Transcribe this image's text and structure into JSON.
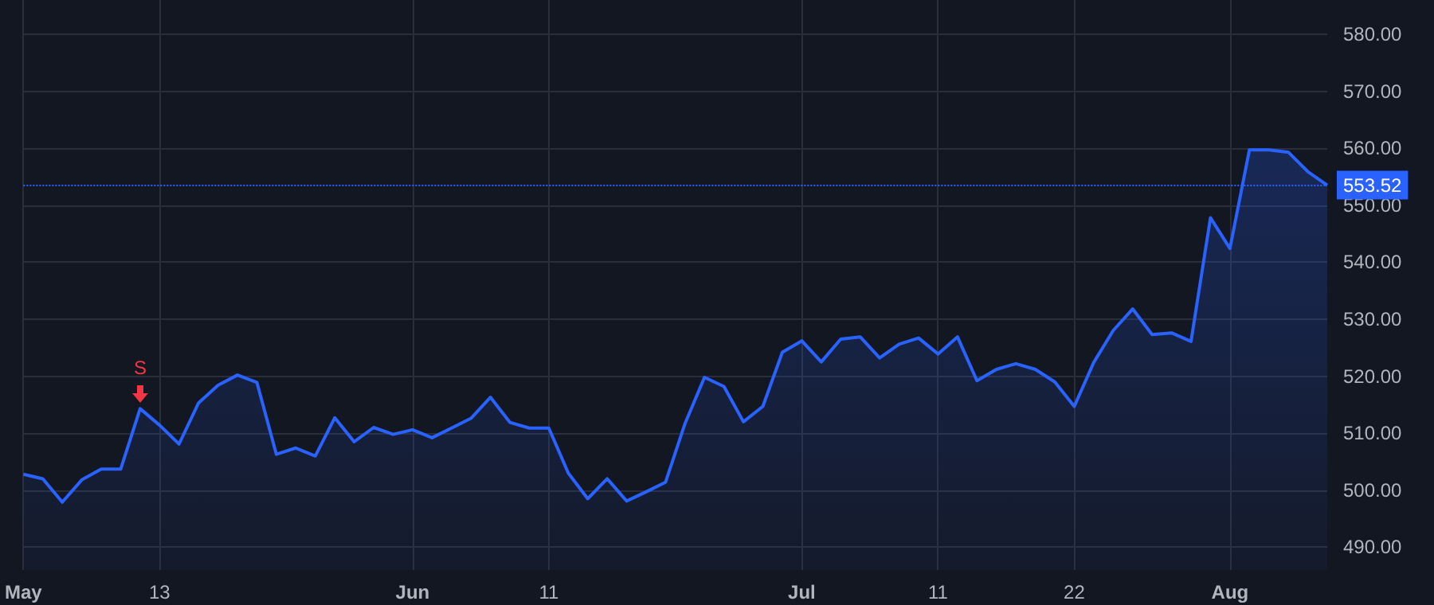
{
  "chart_data": {
    "type": "area",
    "categories": [
      "May",
      null,
      null,
      null,
      null,
      null,
      null,
      "13",
      null,
      null,
      null,
      null,
      null,
      null,
      null,
      null,
      null,
      null,
      null,
      null,
      "Jun",
      null,
      null,
      null,
      null,
      null,
      null,
      "11",
      null,
      null,
      null,
      null,
      null,
      null,
      null,
      null,
      null,
      null,
      null,
      null,
      "Jul",
      null,
      null,
      null,
      null,
      null,
      null,
      "11",
      null,
      null,
      null,
      null,
      null,
      null,
      "22",
      null,
      null,
      null,
      null,
      null,
      null,
      null,
      "Aug",
      null,
      null,
      null,
      null,
      null
    ],
    "series": [
      {
        "color": "#2962ff",
        "values": [
          502.8,
          502.0,
          497.9,
          501.8,
          503.7,
          503.7,
          514.3,
          511.4,
          508.1,
          515.3,
          518.4,
          520.2,
          518.9,
          506.3,
          507.4,
          506.0,
          512.7,
          508.5,
          511.0,
          509.8,
          510.6,
          509.2,
          510.9,
          512.6,
          516.3,
          511.9,
          510.9,
          510.9,
          503.0,
          498.5,
          502.0,
          498.1,
          499.7,
          501.4,
          511.7,
          519.8,
          518.2,
          512.0,
          514.7,
          524.2,
          526.2,
          522.5,
          526.5,
          526.9,
          523.2,
          525.6,
          526.7,
          523.9,
          526.9,
          519.2,
          521.2,
          522.2,
          521.2,
          519.0,
          514.7,
          522.4,
          528.0,
          531.8,
          527.3,
          527.6,
          526.1,
          547.8,
          542.4,
          559.7,
          559.7,
          559.3,
          555.9,
          553.52
        ]
      }
    ],
    "ylim": [
      486,
      586
    ],
    "yticks": [
      {
        "value": 490,
        "label": "490.00"
      },
      {
        "value": 500,
        "label": "500.00"
      },
      {
        "value": 510,
        "label": "510.00"
      },
      {
        "value": 520,
        "label": "520.00"
      },
      {
        "value": 530,
        "label": "530.00"
      },
      {
        "value": 540,
        "label": "540.00"
      },
      {
        "value": 550,
        "label": "550.00"
      },
      {
        "value": 560,
        "label": "560.00"
      },
      {
        "value": 570,
        "label": "570.00"
      },
      {
        "value": 580,
        "label": "580.00"
      }
    ],
    "ref_lines": [
      {
        "axis": "y",
        "value": 553.52,
        "label": "553.52",
        "color": "#2962ff",
        "line_style": "dotted"
      }
    ],
    "annotations": [
      {
        "text": "S",
        "y": 514.3
      }
    ],
    "grid": true,
    "marker": "none",
    "line_style": "solid"
  }
}
